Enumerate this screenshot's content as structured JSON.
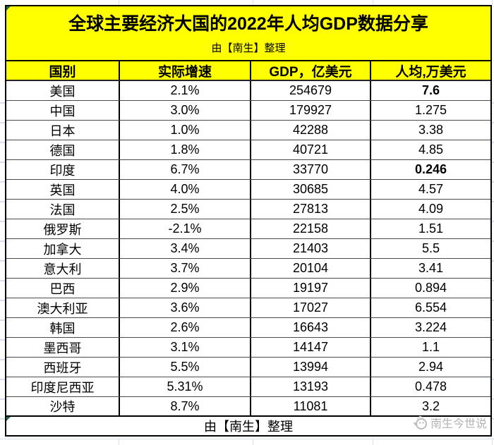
{
  "title": "全球主要经济大国的2022年人均GDP数据分享",
  "subtitle": "由【南生】整理",
  "table": {
    "columns": [
      "国别",
      "实际增速",
      "GDP，亿美元",
      "人均,万美元"
    ],
    "rows": [
      {
        "country": "美国",
        "growth": "2.1%",
        "gdp": "254679",
        "per_capita": "7.6",
        "per_capita_bold": true
      },
      {
        "country": "中国",
        "growth": "3.0%",
        "gdp": "179927",
        "per_capita": "1.275",
        "per_capita_bold": false
      },
      {
        "country": "日本",
        "growth": "1.0%",
        "gdp": "42288",
        "per_capita": "3.38",
        "per_capita_bold": false
      },
      {
        "country": "德国",
        "growth": "1.8%",
        "gdp": "40721",
        "per_capita": "4.85",
        "per_capita_bold": false
      },
      {
        "country": "印度",
        "growth": "6.7%",
        "gdp": "33770",
        "per_capita": "0.246",
        "per_capita_bold": true
      },
      {
        "country": "英国",
        "growth": "4.0%",
        "gdp": "30685",
        "per_capita": "4.57",
        "per_capita_bold": false
      },
      {
        "country": "法国",
        "growth": "2.5%",
        "gdp": "27813",
        "per_capita": "4.09",
        "per_capita_bold": false
      },
      {
        "country": "俄罗斯",
        "growth": "-2.1%",
        "gdp": "22158",
        "per_capita": "1.51",
        "per_capita_bold": false
      },
      {
        "country": "加拿大",
        "growth": "3.4%",
        "gdp": "21403",
        "per_capita": "5.5",
        "per_capita_bold": false
      },
      {
        "country": "意大利",
        "growth": "3.7%",
        "gdp": "20104",
        "per_capita": "3.41",
        "per_capita_bold": false
      },
      {
        "country": "巴西",
        "growth": "2.9%",
        "gdp": "19197",
        "per_capita": "0.894",
        "per_capita_bold": false
      },
      {
        "country": "澳大利亚",
        "growth": "3.6%",
        "gdp": "17027",
        "per_capita": "6.554",
        "per_capita_bold": false
      },
      {
        "country": "韩国",
        "growth": "2.6%",
        "gdp": "16643",
        "per_capita": "3.224",
        "per_capita_bold": false
      },
      {
        "country": "墨西哥",
        "growth": "3.1%",
        "gdp": "14147",
        "per_capita": "1.1",
        "per_capita_bold": false
      },
      {
        "country": "西班牙",
        "growth": "5.5%",
        "gdp": "13994",
        "per_capita": "2.94",
        "per_capita_bold": false
      },
      {
        "country": "印度尼西亚",
        "growth": "5.31%",
        "gdp": "13193",
        "per_capita": "0.478",
        "per_capita_bold": false
      },
      {
        "country": "沙特",
        "growth": "8.7%",
        "gdp": "11081",
        "per_capita": "3.2",
        "per_capita_bold": false
      }
    ]
  },
  "footer": "由【南生】整理",
  "watermark": {
    "text": "南生今世说",
    "icon": "bird-logo-icon"
  },
  "colors": {
    "highlight_yellow": "#ffff00",
    "border_black": "#000000",
    "row_line_gray": "#4a4a4a",
    "sheet_gridline": "#d9e1ec",
    "watermark_gray": "#b3b3b3",
    "excel_flag_green": "#1d6f42"
  },
  "chart_data": {
    "type": "table",
    "title": "全球主要经济大国的2022年人均GDP数据分享",
    "columns": [
      "国别",
      "实际增速",
      "GDP，亿美元",
      "人均,万美元"
    ],
    "rows": [
      [
        "美国",
        "2.1%",
        254679,
        7.6
      ],
      [
        "中国",
        "3.0%",
        179927,
        1.275
      ],
      [
        "日本",
        "1.0%",
        42288,
        3.38
      ],
      [
        "德国",
        "1.8%",
        40721,
        4.85
      ],
      [
        "印度",
        "6.7%",
        33770,
        0.246
      ],
      [
        "英国",
        "4.0%",
        30685,
        4.57
      ],
      [
        "法国",
        "2.5%",
        27813,
        4.09
      ],
      [
        "俄罗斯",
        "-2.1%",
        22158,
        1.51
      ],
      [
        "加拿大",
        "3.4%",
        21403,
        5.5
      ],
      [
        "意大利",
        "3.7%",
        20104,
        3.41
      ],
      [
        "巴西",
        "2.9%",
        19197,
        0.894
      ],
      [
        "澳大利亚",
        "3.6%",
        17027,
        6.554
      ],
      [
        "韩国",
        "2.6%",
        16643,
        3.224
      ],
      [
        "墨西哥",
        "3.1%",
        14147,
        1.1
      ],
      [
        "西班牙",
        "5.5%",
        13994,
        2.94
      ],
      [
        "印度尼西亚",
        "5.31%",
        13193,
        0.478
      ],
      [
        "沙特",
        "8.7%",
        11081,
        3.2
      ]
    ]
  }
}
